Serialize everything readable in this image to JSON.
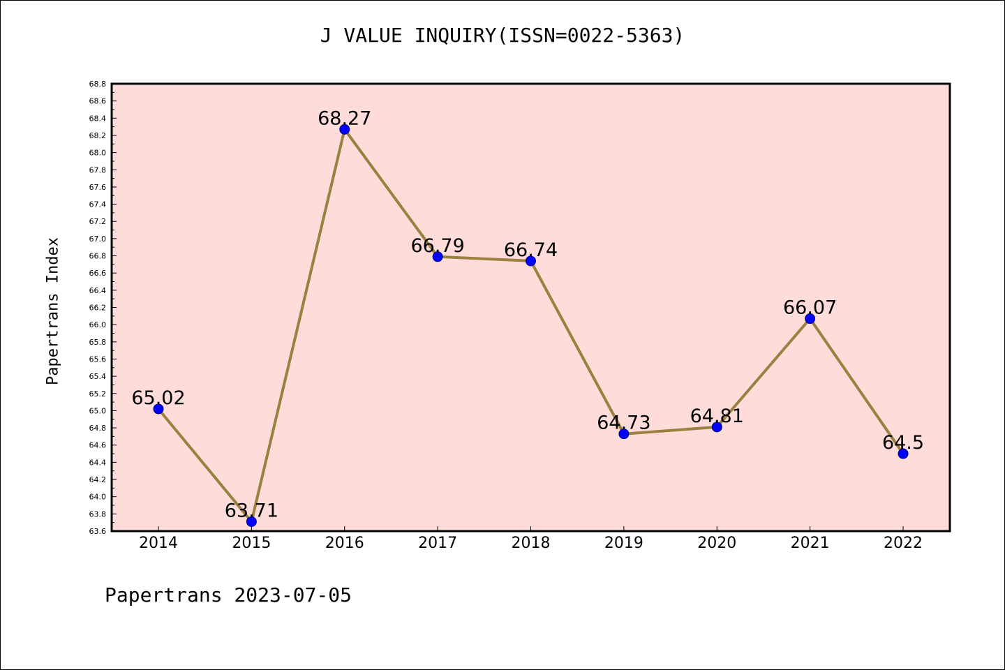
{
  "chart_data": {
    "type": "line",
    "title": "J VALUE INQUIRY(ISSN=0022-5363)",
    "xlabel": "",
    "ylabel": "Papertrans Index",
    "categories": [
      "2014",
      "2015",
      "2016",
      "2017",
      "2018",
      "2019",
      "2020",
      "2021",
      "2022"
    ],
    "series": [
      {
        "values": [
          65.02,
          63.71,
          68.27,
          66.79,
          66.74,
          64.73,
          64.81,
          66.07,
          64.5
        ],
        "data_labels": [
          "65.02",
          "63.71",
          "68.27",
          "66.79",
          "66.74",
          "64.73",
          "64.81",
          "66.07",
          "64.5"
        ],
        "line_color": "#9b8040",
        "marker_color": "#0000ff"
      }
    ],
    "ylim": [
      63.6,
      68.8
    ],
    "y_ticks": [
      "63.6",
      "63.8",
      "64.0",
      "64.2",
      "64.4",
      "64.6",
      "64.8",
      "65.0",
      "65.2",
      "65.4",
      "65.6",
      "65.8",
      "66.0",
      "66.2",
      "66.4",
      "66.6",
      "66.8",
      "67.0",
      "67.2",
      "67.4",
      "67.6",
      "67.8",
      "68.0",
      "68.2",
      "68.4",
      "68.6",
      "68.8"
    ],
    "plot_background": "#fddcda",
    "grid": false,
    "legend": "none"
  },
  "footer": {
    "text": "Papertrans 2023-07-05"
  }
}
